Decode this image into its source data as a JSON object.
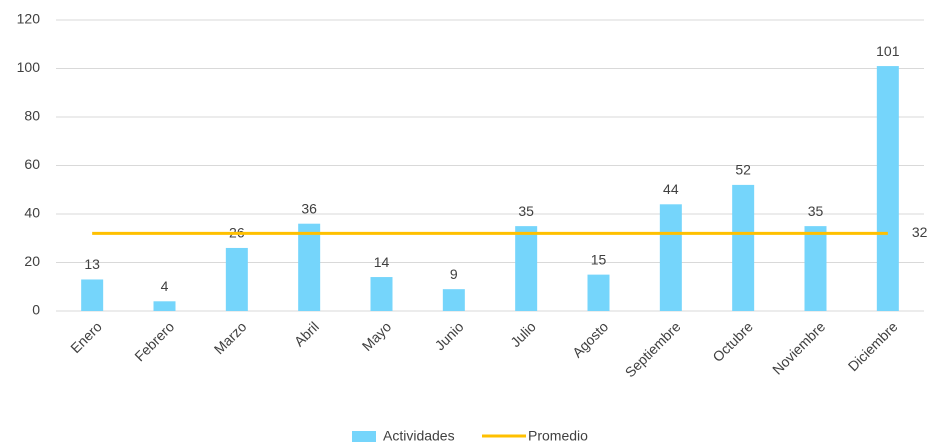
{
  "chart_data": {
    "type": "bar",
    "categories": [
      "Enero",
      "Febrero",
      "Marzo",
      "Abril",
      "Mayo",
      "Junio",
      "Julio",
      "Agosto",
      "Septiembre",
      "Octubre",
      "Noviembre",
      "Diciembre"
    ],
    "series": [
      {
        "name": "Actividades",
        "type": "bar",
        "color": "#75d5fb",
        "values": [
          13,
          4,
          26,
          36,
          14,
          9,
          35,
          15,
          44,
          52,
          35,
          101
        ]
      },
      {
        "name": "Promedio",
        "type": "line",
        "color": "#ffc000",
        "values": [
          32,
          32,
          32,
          32,
          32,
          32,
          32,
          32,
          32,
          32,
          32,
          32
        ]
      }
    ],
    "ylim": [
      0,
      120
    ],
    "yticks": [
      0,
      20,
      40,
      60,
      80,
      100,
      120
    ],
    "grid": true,
    "legend": "bottom"
  }
}
